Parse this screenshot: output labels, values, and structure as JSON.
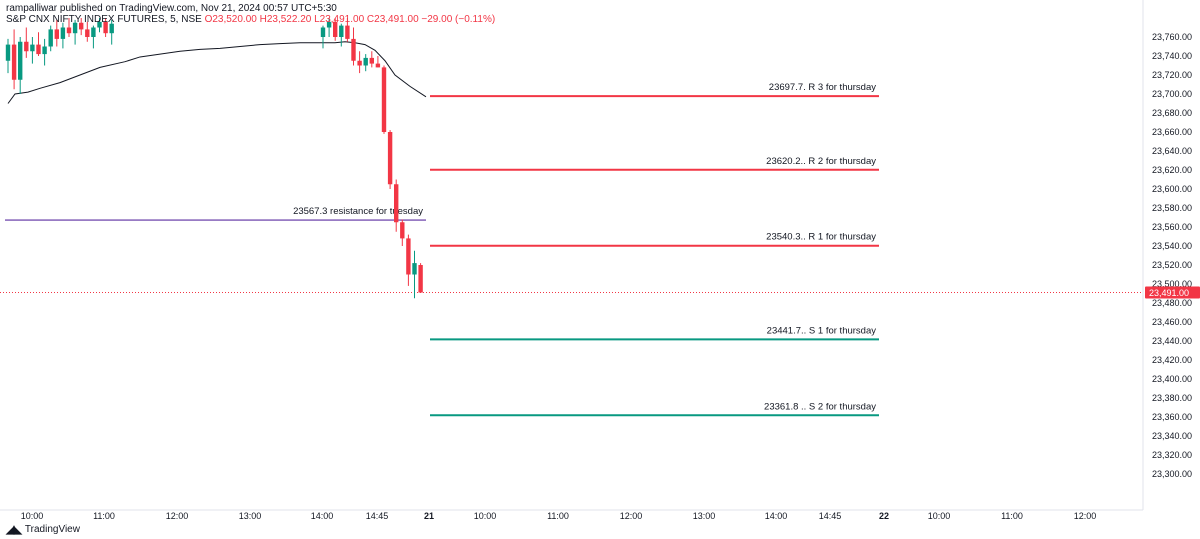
{
  "header": {
    "publisher": "rampalliwar published on TradingView.com, Nov 21, 2024 00:57 UTC+5:30",
    "symbol": "S&P CNX NIFTY INDEX FUTURES, 5, NSE",
    "ohlc": "O23,520.00  H23,522.20  L23,491.00  C23,491.00  −29.00 (−0.11%)"
  },
  "footer": {
    "brand": "TradingView",
    "logo_icon": "tradingview-logo-icon"
  },
  "colors": {
    "up": "#089981",
    "down": "#f23645",
    "vwap": "#131722",
    "resistance": "#f23645",
    "support": "#089981",
    "purple": "#5b2ca0"
  },
  "current_price_label": "23,491.00",
  "chart_data": {
    "type": "candlestick",
    "ylim": [
      23280,
      23780
    ],
    "y_ticks": [
      "23,760.00",
      "23,740.00",
      "23,720.00",
      "23,700.00",
      "23,680.00",
      "23,660.00",
      "23,640.00",
      "23,620.00",
      "23,600.00",
      "23,580.00",
      "23,560.00",
      "23,540.00",
      "23,520.00",
      "23,500.00",
      "23,480.00",
      "23,460.00",
      "23,440.00",
      "23,420.00",
      "23,400.00",
      "23,380.00",
      "23,360.00",
      "23,340.00",
      "23,320.00",
      "23,300.00"
    ],
    "x_ticks": [
      "10:00",
      "11:00",
      "12:00",
      "13:00",
      "14:00",
      "14:45",
      "21",
      "10:00",
      "11:00",
      "12:00",
      "13:00",
      "14:00",
      "14:45",
      "22",
      "10:00",
      "11:00",
      "12:00"
    ],
    "last_price": 23491.0,
    "candles": [
      {
        "t": "09:15",
        "o": 23735,
        "h": 23758,
        "l": 23722,
        "c": 23752
      },
      {
        "t": "09:20",
        "o": 23752,
        "h": 23768,
        "l": 23705,
        "c": 23715
      },
      {
        "t": "09:25",
        "o": 23715,
        "h": 23760,
        "l": 23700,
        "c": 23755
      },
      {
        "t": "09:30",
        "o": 23755,
        "h": 23770,
        "l": 23738,
        "c": 23745
      },
      {
        "t": "09:35",
        "o": 23745,
        "h": 23760,
        "l": 23732,
        "c": 23752
      },
      {
        "t": "09:40",
        "o": 23752,
        "h": 23765,
        "l": 23740,
        "c": 23742
      },
      {
        "t": "09:45",
        "o": 23742,
        "h": 23758,
        "l": 23730,
        "c": 23750
      },
      {
        "t": "09:50",
        "o": 23750,
        "h": 23772,
        "l": 23745,
        "c": 23768
      },
      {
        "t": "09:55",
        "o": 23768,
        "h": 23778,
        "l": 23750,
        "c": 23758
      },
      {
        "t": "10:00",
        "o": 23758,
        "h": 23775,
        "l": 23748,
        "c": 23770
      },
      {
        "t": "10:05",
        "o": 23770,
        "h": 23780,
        "l": 23760,
        "c": 23764
      },
      {
        "t": "10:10",
        "o": 23764,
        "h": 23778,
        "l": 23752,
        "c": 23775
      },
      {
        "t": "10:15",
        "o": 23775,
        "h": 23780,
        "l": 23762,
        "c": 23768
      },
      {
        "t": "10:20",
        "o": 23768,
        "h": 23776,
        "l": 23755,
        "c": 23760
      },
      {
        "t": "10:25",
        "o": 23760,
        "h": 23772,
        "l": 23748,
        "c": 23770
      },
      {
        "t": "10:30",
        "o": 23770,
        "h": 23780,
        "l": 23765,
        "c": 23776
      },
      {
        "t": "10:35",
        "o": 23776,
        "h": 23780,
        "l": 23760,
        "c": 23764
      },
      {
        "t": "10:40",
        "o": 23764,
        "h": 23778,
        "l": 23752,
        "c": 23774
      },
      {
        "t": "14:05",
        "o": 23760,
        "h": 23772,
        "l": 23748,
        "c": 23770
      },
      {
        "t": "14:10",
        "o": 23770,
        "h": 23780,
        "l": 23760,
        "c": 23776
      },
      {
        "t": "14:15",
        "o": 23776,
        "h": 23780,
        "l": 23756,
        "c": 23760
      },
      {
        "t": "14:20",
        "o": 23760,
        "h": 23774,
        "l": 23750,
        "c": 23772
      },
      {
        "t": "14:25",
        "o": 23772,
        "h": 23780,
        "l": 23755,
        "c": 23758
      },
      {
        "t": "14:30",
        "o": 23758,
        "h": 23770,
        "l": 23730,
        "c": 23735
      },
      {
        "t": "14:35",
        "o": 23735,
        "h": 23745,
        "l": 23722,
        "c": 23730
      },
      {
        "t": "14:40",
        "o": 23730,
        "h": 23742,
        "l": 23724,
        "c": 23738
      },
      {
        "t": "14:45",
        "o": 23738,
        "h": 23745,
        "l": 23728,
        "c": 23732
      },
      {
        "t": "14:50",
        "o": 23732,
        "h": 23740,
        "l": 23728,
        "c": 23728
      },
      {
        "t": "14:55",
        "o": 23728,
        "h": 23730,
        "l": 23658,
        "c": 23660
      },
      {
        "t": "15:00",
        "o": 23660,
        "h": 23662,
        "l": 23600,
        "c": 23605
      },
      {
        "t": "15:05",
        "o": 23605,
        "h": 23610,
        "l": 23555,
        "c": 23565
      },
      {
        "t": "15:10",
        "o": 23565,
        "h": 23568,
        "l": 23540,
        "c": 23548
      },
      {
        "t": "15:15",
        "o": 23548,
        "h": 23552,
        "l": 23498,
        "c": 23510
      },
      {
        "t": "15:20",
        "o": 23510,
        "h": 23535,
        "l": 23485,
        "c": 23522
      },
      {
        "t": "15:25",
        "o": 23520,
        "h": 23522,
        "l": 23491,
        "c": 23491
      }
    ],
    "vwap": [
      23690,
      23700,
      23702,
      23706,
      23712,
      23720,
      23728,
      23734,
      23739,
      23742,
      23745,
      23747,
      23748,
      23750,
      23752,
      23753,
      23754,
      23754,
      23754,
      23754,
      23755,
      23754,
      23752,
      23746,
      23735,
      23720,
      23708,
      23697
    ],
    "levels": [
      {
        "label": "23697.7. R 3 for thursday",
        "value": 23697.7,
        "kind": "resistance",
        "segment": "next"
      },
      {
        "label": "23620.2.. R 2 for thursday",
        "value": 23620.2,
        "kind": "resistance",
        "segment": "next"
      },
      {
        "label": "23540.3.. R 1 for thursday",
        "value": 23540.3,
        "kind": "resistance",
        "segment": "next"
      },
      {
        "label": "23567.3 resistance for tuesday",
        "value": 23567.3,
        "kind": "purple",
        "segment": "current"
      },
      {
        "label": "23441.7.. S 1 for thursday",
        "value": 23441.7,
        "kind": "support",
        "segment": "next"
      },
      {
        "label": "23361.8 .. S 2 for thursday",
        "value": 23361.8,
        "kind": "support",
        "segment": "next"
      }
    ]
  }
}
